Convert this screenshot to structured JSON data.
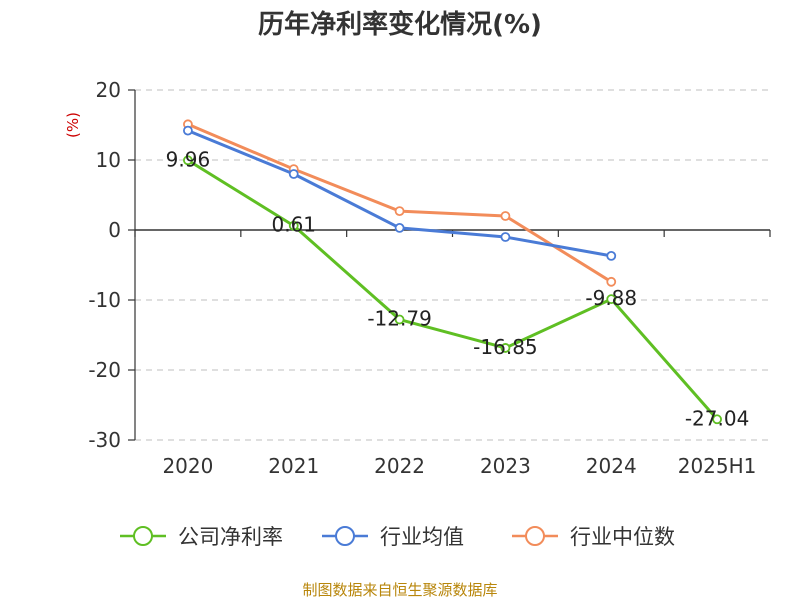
{
  "chart_data": {
    "type": "line",
    "title": "历年净利率变化情况(%)",
    "ylabel": "(%)",
    "categories": [
      "2020",
      "2021",
      "2022",
      "2023",
      "2024",
      "2025H1"
    ],
    "ylim": [
      -30,
      20
    ],
    "yticks": [
      20,
      10,
      0,
      -10,
      -20,
      -30
    ],
    "grid": true,
    "legend_placement": "bottom",
    "series": [
      {
        "name": "公司净利率",
        "color": "#5fbf23",
        "values": [
          9.96,
          0.61,
          -12.79,
          -16.85,
          -9.88,
          -27.04
        ],
        "labels": [
          "9.96",
          "0.61",
          "-12.79",
          "-16.85",
          "-9.88",
          "-27.04"
        ]
      },
      {
        "name": "行业均值",
        "color": "#4a7bd6",
        "values": [
          14.2,
          8.0,
          0.3,
          -1.0,
          -3.7,
          null
        ]
      },
      {
        "name": "行业中位数",
        "color": "#f28c5a",
        "values": [
          15.1,
          8.7,
          2.7,
          2.0,
          -7.4,
          null
        ]
      }
    ]
  },
  "footer": {
    "source": "制图数据来自恒生聚源数据库"
  }
}
